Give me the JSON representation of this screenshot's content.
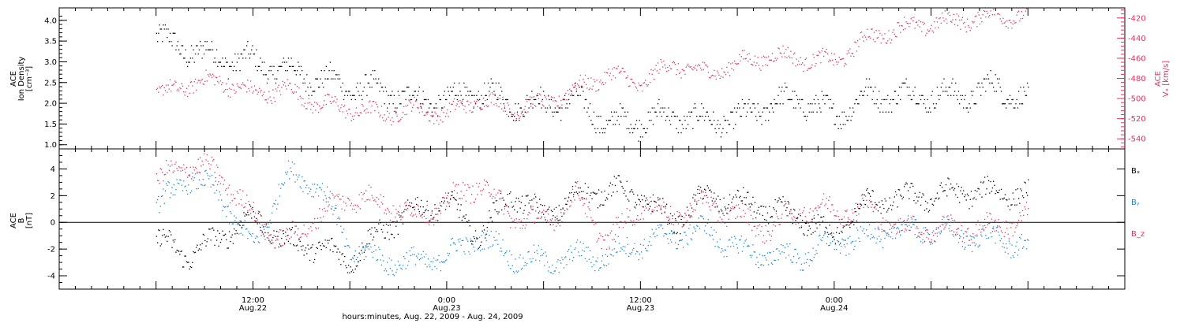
{
  "chart_data": [
    {
      "type": "scatter",
      "panel": "top",
      "ylabel_left": [
        "ACE",
        "Ion Density",
        "[cm⁻³]"
      ],
      "ylabel_right": [
        "ACE",
        "Vₓ [km/s]"
      ],
      "ylim_left": [
        0.9,
        4.3
      ],
      "ylim_right": [
        -550,
        -410
      ],
      "yticks_left": [
        "1.0",
        "1.5",
        "2.0",
        "2.5",
        "3.0",
        "3.5",
        "4.0"
      ],
      "yticks_right": [
        "-540",
        "-520",
        "-500",
        "-480",
        "-460",
        "-440",
        "-420"
      ],
      "grid": false,
      "colors": {
        "density": "#000000",
        "vx": "#e8325a"
      },
      "series": [
        {
          "axis": "left",
          "color": "#000000",
          "x_hours": [
            0,
            2,
            4,
            6,
            8,
            10,
            12,
            14,
            16,
            18,
            20,
            22,
            24,
            26,
            28,
            30,
            32,
            34,
            36,
            38,
            40,
            42,
            44,
            46,
            48,
            50,
            52,
            54
          ],
          "values": [
            3.6,
            3.3,
            3.1,
            3.0,
            2.8,
            2.6,
            2.4,
            2.3,
            2.1,
            2.1,
            2.3,
            2.0,
            2.0,
            2.1,
            1.5,
            1.6,
            1.7,
            1.6,
            1.6,
            2.0,
            2.1,
            1.7,
            2.2,
            2.2,
            2.2,
            2.2,
            2.4,
            2.1
          ]
        },
        {
          "axis": "right",
          "color": "#e8325a",
          "x_hours": [
            0,
            2,
            4,
            6,
            8,
            10,
            12,
            14,
            16,
            18,
            20,
            22,
            24,
            26,
            28,
            30,
            32,
            34,
            36,
            38,
            40,
            42,
            44,
            46,
            48,
            50,
            52,
            54
          ],
          "values": [
            -497,
            -485,
            -482,
            -495,
            -490,
            -505,
            -510,
            -515,
            -510,
            -515,
            -500,
            -510,
            -505,
            -490,
            -475,
            -485,
            -465,
            -475,
            -465,
            -457,
            -460,
            -463,
            -440,
            -430,
            -425,
            -422,
            -417,
            -418
          ]
        }
      ]
    },
    {
      "type": "scatter",
      "panel": "bottom",
      "ylabel_left": [
        "ACE",
        "B",
        "[nT]"
      ],
      "ylim": [
        -5,
        5.5
      ],
      "yticks": [
        "-4",
        "-2",
        "0",
        "2",
        "4"
      ],
      "grid": false,
      "zero_line": true,
      "legend_placement": "right",
      "series": [
        {
          "name": "Bₓ",
          "color": "#000000",
          "x_hours": [
            0,
            2,
            4,
            6,
            8,
            10,
            12,
            14,
            16,
            18,
            20,
            22,
            24,
            26,
            28,
            30,
            32,
            34,
            36,
            38,
            40,
            42,
            44,
            46,
            48,
            50,
            52,
            54
          ],
          "values": [
            -1.2,
            -2.5,
            -1.0,
            0.5,
            -1.5,
            -1.8,
            -2.8,
            -0.5,
            1.0,
            1.5,
            -1.0,
            2.2,
            0.5,
            2.0,
            2.5,
            2.0,
            0.0,
            2.0,
            1.5,
            1.0,
            0.3,
            -1.0,
            1.5,
            1.8,
            2.0,
            2.3,
            2.3,
            2.1
          ]
        },
        {
          "name": "Bᵧ",
          "color": "#1a86d8",
          "x_hours": [
            0,
            2,
            4,
            6,
            8,
            10,
            12,
            14,
            16,
            18,
            20,
            22,
            24,
            26,
            28,
            30,
            32,
            34,
            36,
            38,
            40,
            42,
            44,
            46,
            48,
            50,
            52,
            54
          ],
          "values": [
            1.0,
            3.5,
            2.0,
            -2.0,
            3.5,
            3.0,
            -2.0,
            -2.8,
            -3.0,
            -2.5,
            -1.0,
            -2.5,
            -3.0,
            -2.5,
            -2.5,
            -1.5,
            -1.0,
            -0.5,
            -2.0,
            -2.5,
            -2.5,
            -1.5,
            -1.0,
            -0.5,
            -0.5,
            -1.0,
            -1.2,
            -1.8
          ]
        },
        {
          "name": "B_z",
          "color": "#e8325a",
          "x_hours": [
            0,
            2,
            4,
            6,
            8,
            10,
            12,
            14,
            16,
            18,
            20,
            22,
            24,
            26,
            28,
            30,
            32,
            34,
            36,
            38,
            40,
            42,
            44,
            46,
            48,
            50,
            52,
            54
          ],
          "values": [
            3.0,
            4.5,
            3.5,
            0.5,
            -1.5,
            0.5,
            2.0,
            1.5,
            0.5,
            1.5,
            3.0,
            0.5,
            0.0,
            2.0,
            -1.5,
            1.5,
            0.5,
            1.5,
            0.5,
            -0.5,
            1.0,
            1.0,
            1.0,
            -0.5,
            -0.5,
            -0.5,
            -0.3,
            0.5
          ]
        }
      ]
    },
    {
      "type": "axis",
      "xlim_hours": [
        -6,
        60
      ],
      "ticks": [
        {
          "hour": 6,
          "time": "12:00",
          "date": "Aug.22"
        },
        {
          "hour": 18,
          "time": "0:00",
          "date": "Aug.23"
        },
        {
          "hour": 30,
          "time": "12:00",
          "date": "Aug.23"
        },
        {
          "hour": 42,
          "time": "0:00",
          "date": "Aug.24"
        }
      ],
      "xlabel": "hours:minutes, Aug. 22, 2009 - Aug. 24, 2009"
    }
  ]
}
